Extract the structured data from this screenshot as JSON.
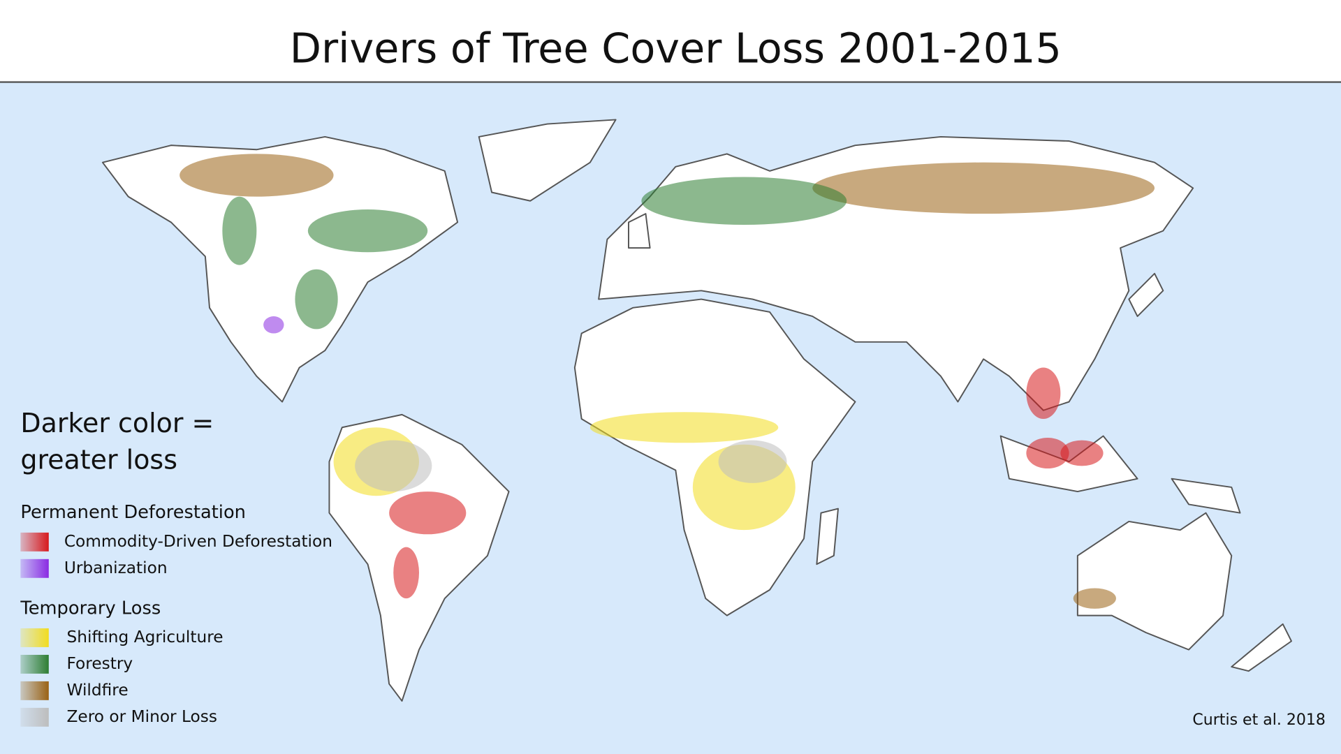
{
  "title": "Drivers of Tree Cover Loss 2001-2015",
  "note": [
    "Darker color =",
    "greater loss"
  ],
  "legend": {
    "groups": [
      {
        "title": "Permanent Deforestation",
        "items": [
          {
            "label": "Commodity-Driven Deforestation",
            "color": "#d7191c"
          },
          {
            "label": "Urbanization",
            "color": "#8a2be2"
          }
        ]
      },
      {
        "title": "Temporary Loss",
        "items": [
          {
            "label": "Shifting Agriculture",
            "color": "#f2dc1e"
          },
          {
            "label": "Forestry",
            "color": "#2e7d32"
          },
          {
            "label": "Wildfire",
            "color": "#9a6214"
          },
          {
            "label": "Zero or Minor Loss",
            "color": "#bdbdbd"
          }
        ]
      }
    ]
  },
  "credit": "Curtis et al. 2018"
}
